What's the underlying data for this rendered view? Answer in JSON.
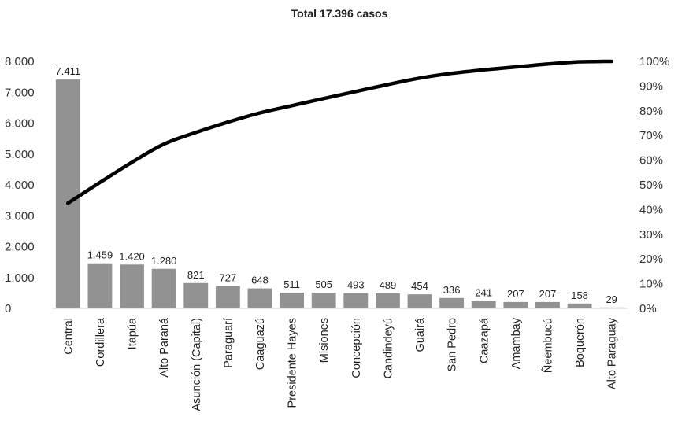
{
  "chart_data": {
    "type": "bar",
    "title": "Total 17.396 casos",
    "xlabel": "",
    "ylabel": "",
    "categories": [
      "Central",
      "Cordillera",
      "Itapúa",
      "Alto Paraná",
      "Asunción (Capital)",
      "Paraguarí",
      "Caaguazú",
      "Presidente Hayes",
      "Misiones",
      "Concepción",
      "Candindeyú",
      "Guairá",
      "San Pedro",
      "Caazapá",
      "Amambay",
      "Ñeembucú",
      "Boquerón",
      "Alto Paraguay"
    ],
    "values": [
      7411,
      1459,
      1420,
      1280,
      821,
      727,
      648,
      511,
      505,
      493,
      489,
      454,
      336,
      241,
      207,
      207,
      158,
      29
    ],
    "value_labels": [
      "7.411",
      "1.459",
      "1.420",
      "1.280",
      "821",
      "727",
      "648",
      "511",
      "505",
      "493",
      "489",
      "454",
      "336",
      "241",
      "207",
      "207",
      "158",
      "29"
    ],
    "ylim": [
      0,
      8000
    ],
    "y_ticks": [
      0,
      1000,
      2000,
      3000,
      4000,
      5000,
      6000,
      7000,
      8000
    ],
    "y_tick_labels": [
      "0",
      "1.000",
      "2.000",
      "3.000",
      "4.000",
      "5.000",
      "6.000",
      "7.000",
      "8.000"
    ],
    "y2lim": [
      0,
      100
    ],
    "y2_ticks": [
      0,
      10,
      20,
      30,
      40,
      50,
      60,
      70,
      80,
      90,
      100
    ],
    "y2_tick_labels": [
      "0%",
      "10%",
      "20%",
      "30%",
      "40%",
      "50%",
      "60%",
      "70%",
      "80%",
      "90%",
      "100%"
    ],
    "cumulative_line": true,
    "grid": false,
    "legend": "none",
    "colors": {
      "bar": "#929292",
      "line": "#000000"
    }
  }
}
